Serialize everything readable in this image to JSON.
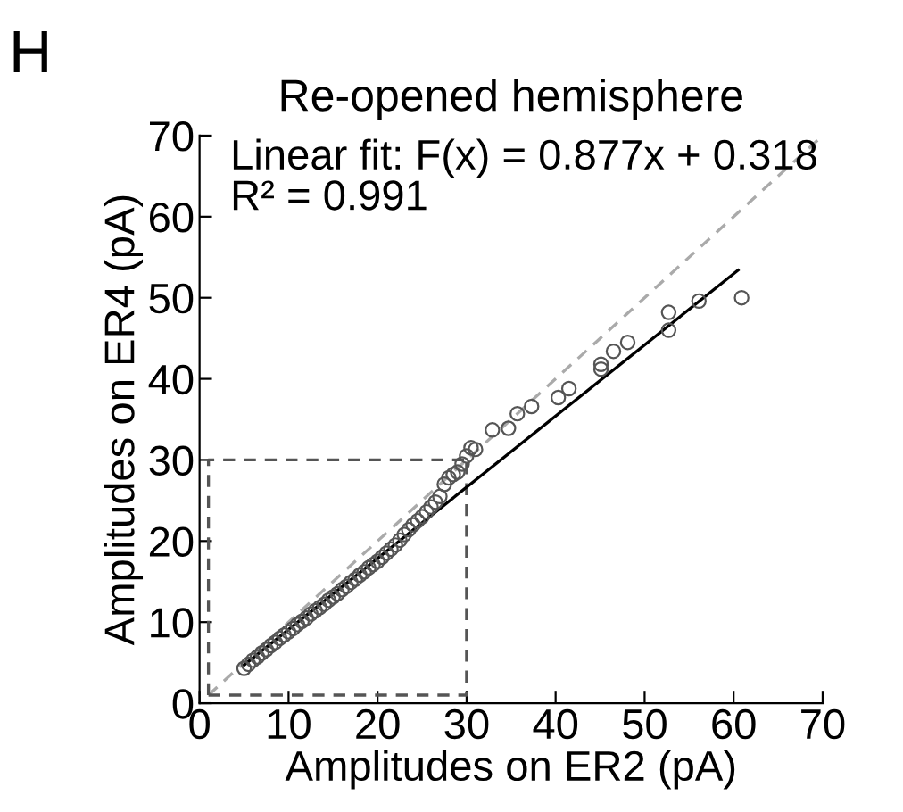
{
  "chart_data": {
    "type": "scatter",
    "title": "Re-opened hemisphere",
    "xlabel": "Amplitudes on ER2 (pA)",
    "ylabel": "Amplitudes on ER4 (pA)",
    "annotations": [
      "H",
      "Linear fit: F(x) = 0.877x + 0.318",
      "R² = 0.991"
    ],
    "xlim": [
      0,
      70
    ],
    "ylim": [
      0,
      70
    ],
    "xticks": [
      0,
      10,
      20,
      30,
      40,
      50,
      60,
      70
    ],
    "yticks": [
      0,
      10,
      20,
      30,
      40,
      50,
      60,
      70
    ],
    "series": [
      {
        "type": "line",
        "color": "#aaaaaa",
        "line_style": "dashed",
        "x": [
          1,
          70
        ],
        "values": [
          1,
          70
        ]
      },
      {
        "type": "line",
        "color": "#555555",
        "line_style": "dashed",
        "x": [
          1,
          1,
          30
        ],
        "values": [
          1,
          30,
          30
        ]
      },
      {
        "type": "line",
        "color": "#555555",
        "line_style": "dashed",
        "x": [
          1,
          30,
          30
        ],
        "values": [
          1,
          1,
          30
        ]
      },
      {
        "color": "#555555",
        "marker": "circle",
        "x": [
          5,
          5.5,
          6,
          6.5,
          7,
          7.5,
          8,
          8.5,
          9,
          9.5,
          10,
          10.5,
          11,
          11.5,
          12,
          12.5,
          13,
          13.5,
          14,
          14.5,
          15,
          15.5,
          16,
          16.5,
          17,
          17.5,
          18,
          18.5,
          19,
          19.5,
          20,
          20.5,
          21,
          21.5,
          22,
          22.5,
          23,
          23.5,
          24,
          24.5,
          25,
          25.5,
          26,
          26.5,
          27,
          27.5,
          28,
          28.5,
          29,
          29.5,
          30,
          30.5,
          31,
          32.9,
          34.7,
          35.7,
          37.3,
          40.3,
          41.5,
          45.1,
          45.1,
          46.5,
          48.1,
          52.7,
          52.7,
          56.1,
          60.9
        ],
        "values": [
          4.3,
          4.8,
          5.3,
          5.7,
          6.2,
          6.6,
          7.1,
          7.5,
          8,
          8.4,
          8.8,
          9.2,
          9.7,
          10.1,
          10.5,
          11,
          11.4,
          11.8,
          12.2,
          12.7,
          13.1,
          13.5,
          14,
          14.4,
          14.9,
          15.3,
          15.8,
          16.2,
          16.7,
          17.1,
          17.5,
          18,
          18.5,
          19,
          19.5,
          20.1,
          20.8,
          21.4,
          22,
          22.5,
          23,
          23.6,
          24.2,
          24.8,
          25.5,
          27,
          27.8,
          28.2,
          28.5,
          29.5,
          30.5,
          31.5,
          31.3,
          33.7,
          33.9,
          35.7,
          36.6,
          37.7,
          38.8,
          41.2,
          41.8,
          43.4,
          44.5,
          46,
          48.2,
          49.6,
          50
        ]
      },
      {
        "type": "line",
        "color": "#000000",
        "line_style": "solid",
        "x": [
          5,
          60.5
        ],
        "values": [
          4.7,
          53.4
        ]
      }
    ]
  }
}
